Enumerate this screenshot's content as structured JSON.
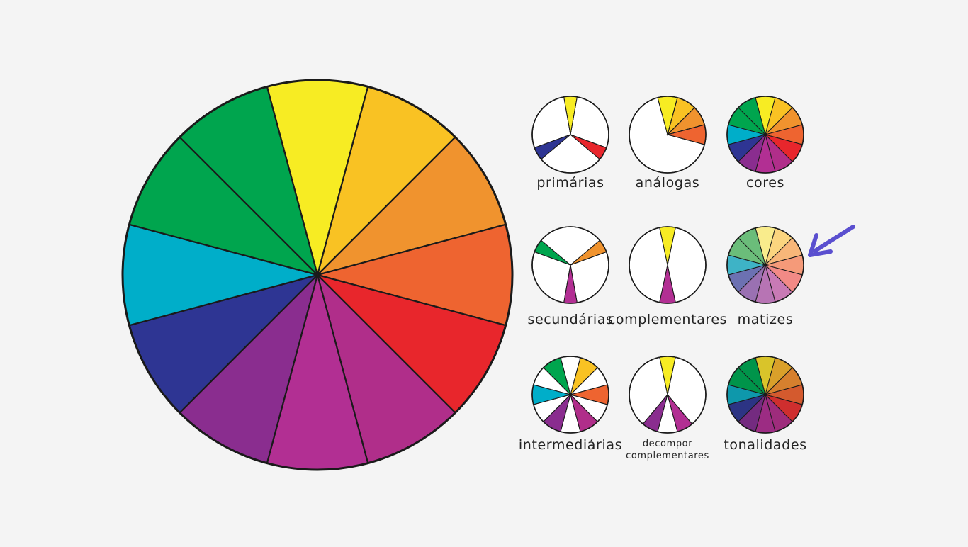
{
  "background_color": "#f4f4f4",
  "colors": {
    "yellow": "#f7ec23",
    "yellow_orange": "#f9c223",
    "orange": "#f0932e",
    "red_orange": "#ee6430",
    "red": "#e8262c",
    "red_violet": "#b02e8a",
    "magenta": "#b22f93",
    "violet": "#8a2d8f",
    "blue_violet": "#2e3593",
    "blue": "#00aec9",
    "green": "#00a54e",
    "yellow_green": "#00a54e",
    "outline": "#1a1a1a",
    "arrow": "#5a4fcf"
  },
  "main_wheel": {
    "segments": [
      "yellow",
      "yellow_orange",
      "orange",
      "red_orange",
      "red",
      "red_violet",
      "magenta",
      "violet",
      "blue_violet",
      "blue",
      "green",
      "yellow_green"
    ]
  },
  "small_wheels": [
    {
      "id": "primarias",
      "label": "primárias",
      "fill": "white",
      "wedges": [
        {
          "color": "#f7ec23",
          "start": -10,
          "end": 10
        },
        {
          "color": "#e8262c",
          "start": 110,
          "end": 130
        },
        {
          "color": "#2e3593",
          "start": 230,
          "end": 250
        }
      ]
    },
    {
      "id": "analogas",
      "label": "análogas",
      "fill": "white",
      "wedges": [
        {
          "color": "#f7ec23",
          "start": -15,
          "end": 15
        },
        {
          "color": "#f9c223",
          "start": 15,
          "end": 45
        },
        {
          "color": "#f0932e",
          "start": 45,
          "end": 75
        },
        {
          "color": "#ee6430",
          "start": 75,
          "end": 105
        }
      ]
    },
    {
      "id": "cores",
      "label": "cores",
      "fill": "white",
      "full": [
        "#f7ec23",
        "#f9c223",
        "#f0932e",
        "#ee6430",
        "#e8262c",
        "#b02e8a",
        "#b22f93",
        "#8a2d8f",
        "#2e3593",
        "#00aec9",
        "#00a54e",
        "#00a54e"
      ]
    },
    {
      "id": "secundarias",
      "label": "secundárias",
      "fill": "white",
      "wedges": [
        {
          "color": "#f0932e",
          "start": 50,
          "end": 70
        },
        {
          "color": "#b22f93",
          "start": 170,
          "end": 190
        },
        {
          "color": "#00a54e",
          "start": 290,
          "end": 310
        }
      ]
    },
    {
      "id": "complementares",
      "label": "complementares",
      "fill": "white",
      "wedges": [
        {
          "color": "#f7ec23",
          "start": -12,
          "end": 12
        },
        {
          "color": "#b22f93",
          "start": 168,
          "end": 192
        }
      ]
    },
    {
      "id": "matizes",
      "label": "matizes",
      "fill": "white",
      "full": [
        "#f9ec8c",
        "#fbd57f",
        "#f8b779",
        "#f59a79",
        "#f28a86",
        "#c87ab5",
        "#b774b4",
        "#9a71b2",
        "#6c71b2",
        "#3eb3c6",
        "#6bbd7a",
        "#6bbd7a"
      ]
    },
    {
      "id": "intermediarias",
      "label": "intermediárias",
      "fill": "white",
      "wedges": [
        {
          "color": "#f9c223",
          "start": 15,
          "end": 45
        },
        {
          "color": "#ee6430",
          "start": 75,
          "end": 105
        },
        {
          "color": "#b02e8a",
          "start": 135,
          "end": 165
        },
        {
          "color": "#8a2d8f",
          "start": 195,
          "end": 225
        },
        {
          "color": "#00aec9",
          "start": 255,
          "end": 285
        },
        {
          "color": "#00a54e",
          "start": 315,
          "end": 345
        }
      ]
    },
    {
      "id": "decompor",
      "label": "decompor",
      "label2": "complementares",
      "fill": "white",
      "wedges": [
        {
          "color": "#f7ec23",
          "start": -12,
          "end": 12
        },
        {
          "color": "#b22f93",
          "start": 140,
          "end": 165
        },
        {
          "color": "#8a2d8f",
          "start": 195,
          "end": 220
        }
      ]
    },
    {
      "id": "tonalidades",
      "label": "tonalidades",
      "fill": "white",
      "full": [
        "#d9c42a",
        "#d9a02a",
        "#d6802e",
        "#d45a2e",
        "#cf2e2e",
        "#9e2c7c",
        "#9c2c83",
        "#742b80",
        "#2c3484",
        "#0e98ab",
        "#00944a",
        "#00944a"
      ]
    }
  ]
}
